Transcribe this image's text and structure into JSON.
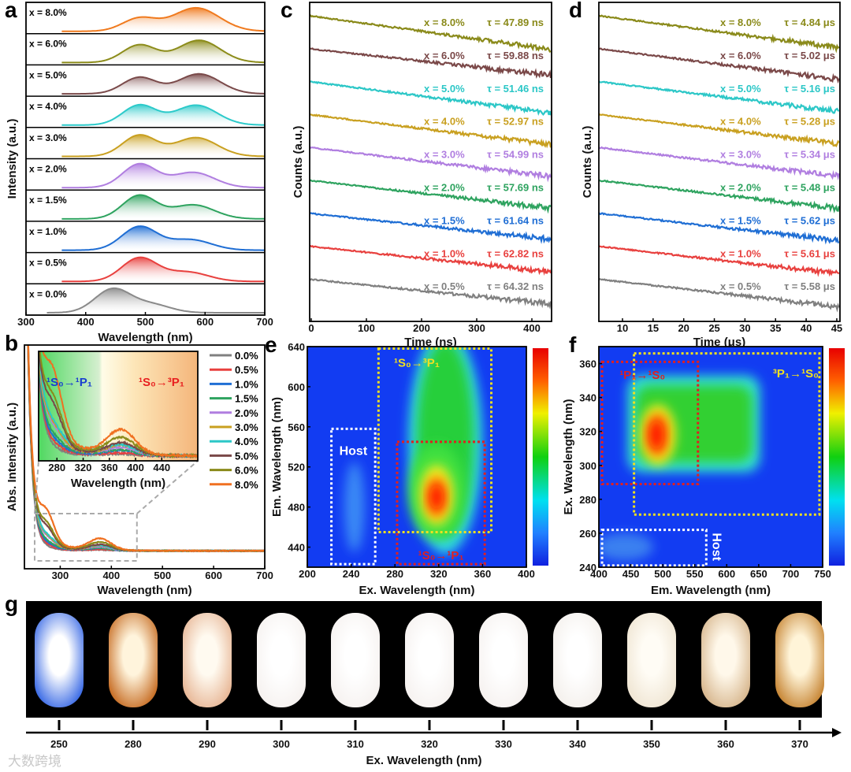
{
  "figure": {
    "panel_labels": [
      "a",
      "b",
      "c",
      "d",
      "e",
      "f",
      "g"
    ],
    "watermark": "大数跨境"
  },
  "chart_data": [
    {
      "panel": "a",
      "type": "area",
      "xlabel": "Wavelength (nm)",
      "ylabel": "Intensity (a.u.)",
      "xlim": [
        300,
        700
      ],
      "xticks": [
        300,
        400,
        500,
        600,
        700
      ],
      "series": [
        {
          "name": "x = 8.0%",
          "color": "#f07a1e",
          "peaks": [
            [
              490,
              0.55,
              40
            ],
            [
              585,
              1.0,
              55
            ]
          ]
        },
        {
          "name": "x = 6.0%",
          "color": "#8c8c1a",
          "peaks": [
            [
              490,
              0.75,
              40
            ],
            [
              590,
              0.95,
              50
            ]
          ]
        },
        {
          "name": "x = 5.0%",
          "color": "#7a4a4a",
          "peaks": [
            [
              490,
              0.7,
              40
            ],
            [
              590,
              0.85,
              50
            ]
          ]
        },
        {
          "name": "x = 4.0%",
          "color": "#2ccaca",
          "peaks": [
            [
              490,
              0.85,
              40
            ],
            [
              585,
              0.85,
              50
            ]
          ]
        },
        {
          "name": "x = 3.0%",
          "color": "#c9a020",
          "peaks": [
            [
              490,
              0.9,
              40
            ],
            [
              585,
              0.8,
              50
            ]
          ]
        },
        {
          "name": "x = 2.0%",
          "color": "#b07ee0",
          "peaks": [
            [
              490,
              1.0,
              40
            ],
            [
              580,
              0.65,
              50
            ]
          ]
        },
        {
          "name": "x = 1.5%",
          "color": "#2ea35f",
          "peaks": [
            [
              490,
              1.0,
              40
            ],
            [
              580,
              0.6,
              50
            ]
          ]
        },
        {
          "name": "x = 1.0%",
          "color": "#1f6ed4",
          "peaks": [
            [
              490,
              1.0,
              42
            ],
            [
              575,
              0.45,
              50
            ]
          ]
        },
        {
          "name": "x = 0.5%",
          "color": "#e8403e",
          "peaks": [
            [
              490,
              1.0,
              42
            ],
            [
              570,
              0.4,
              50
            ]
          ]
        },
        {
          "name": "x = 0.0%",
          "color": "#8a8a8a",
          "peaks": [
            [
              445,
              1.0,
              42
            ],
            [
              510,
              0.35,
              45
            ]
          ]
        }
      ]
    },
    {
      "panel": "b",
      "type": "line",
      "xlabel": "Wavelength (nm)",
      "ylabel": "Abs. Intensity (a.u.)",
      "xlim": [
        230,
        700
      ],
      "xticks": [
        300,
        400,
        500,
        600,
        700
      ],
      "ylim": [
        0,
        1
      ],
      "inset": {
        "xlim": [
          252,
          495
        ],
        "ylim": [
          0.07,
          0.3
        ],
        "xticks": [
          280,
          320,
          360,
          400,
          440
        ],
        "xlabel": "Wavelength (nm)",
        "band_labels": [
          {
            "text": "¹S₀→¹P₁",
            "color": "#1a3fd0"
          },
          {
            "text": "¹S₀→³P₁",
            "color": "#e82020"
          }
        ]
      },
      "series": [
        {
          "name": "0.0%",
          "color": "#808080",
          "shoulder_280": 0.005,
          "band_375": 0.003,
          "tail": 0.01
        },
        {
          "name": "0.5%",
          "color": "#e8403e",
          "shoulder_280": 0.01,
          "band_375": 0.005,
          "tail": 0.015
        },
        {
          "name": "1.0%",
          "color": "#1f6ed4",
          "shoulder_280": 0.015,
          "band_375": 0.01,
          "tail": 0.02
        },
        {
          "name": "1.5%",
          "color": "#2ea35f",
          "shoulder_280": 0.02,
          "band_375": 0.01,
          "tail": 0.025
        },
        {
          "name": "2.0%",
          "color": "#b07ee0",
          "shoulder_280": 0.035,
          "band_375": 0.015,
          "tail": 0.03
        },
        {
          "name": "3.0%",
          "color": "#c9a020",
          "shoulder_280": 0.04,
          "band_375": 0.02,
          "tail": 0.03
        },
        {
          "name": "4.0%",
          "color": "#2cc7c7",
          "shoulder_280": 0.03,
          "band_375": 0.018,
          "tail": 0.05
        },
        {
          "name": "5.0%",
          "color": "#7a4848",
          "shoulder_280": 0.08,
          "band_375": 0.025,
          "tail": 0.03
        },
        {
          "name": "6.0%",
          "color": "#8a8a1a",
          "shoulder_280": 0.09,
          "band_375": 0.035,
          "tail": 0.04
        },
        {
          "name": "8.0%",
          "color": "#f07020",
          "shoulder_280": 0.14,
          "band_375": 0.05,
          "tail": 0.05
        }
      ]
    },
    {
      "panel": "c",
      "type": "line",
      "xlabel": "Time (ns)",
      "ylabel": "Counts (a.u.)",
      "xlim": [
        0,
        440
      ],
      "xticks": [
        0,
        100,
        200,
        300,
        400
      ],
      "series": [
        {
          "name": "x = 8.0%",
          "tau_label": "τ = 47.89 ns",
          "tau": 47.89,
          "color": "#8a8a1a"
        },
        {
          "name": "x = 6.0%",
          "tau_label": "τ = 59.88 ns",
          "tau": 59.88,
          "color": "#7a4848"
        },
        {
          "name": "x = 5.0%",
          "tau_label": "τ = 51.46 ns",
          "tau": 51.46,
          "color": "#2cc7c7"
        },
        {
          "name": "x = 4.0%",
          "tau_label": "τ = 52.97 ns",
          "tau": 52.97,
          "color": "#c9a020"
        },
        {
          "name": "x = 3.0%",
          "tau_label": "τ = 54.99 ns",
          "tau": 54.99,
          "color": "#b07ee0"
        },
        {
          "name": "x = 2.0%",
          "tau_label": "τ = 57.69 ns",
          "tau": 57.69,
          "color": "#2ea35f"
        },
        {
          "name": "x = 1.5%",
          "tau_label": "τ = 61.64 ns",
          "tau": 61.64,
          "color": "#1f6ed4"
        },
        {
          "name": "x = 1.0%",
          "tau_label": "τ = 62.82 ns",
          "tau": 62.82,
          "color": "#e8403e"
        },
        {
          "name": "x = 0.5%",
          "tau_label": "τ = 64.32 ns",
          "tau": 64.32,
          "color": "#808080"
        }
      ]
    },
    {
      "panel": "d",
      "type": "line",
      "xlabel": "Time (μs)",
      "ylabel": "Counts (a.u.)",
      "xlim": [
        6,
        45
      ],
      "xticks": [
        10,
        15,
        20,
        25,
        30,
        35,
        40,
        45
      ],
      "series": [
        {
          "name": "x = 8.0%",
          "tau_label": "τ = 4.84 μs",
          "tau": 4.84,
          "color": "#8a8a1a"
        },
        {
          "name": "x = 6.0%",
          "tau_label": "τ = 5.02 μs",
          "tau": 5.02,
          "color": "#7a4848"
        },
        {
          "name": "x = 5.0%",
          "tau_label": "τ = 5.16 μs",
          "tau": 5.16,
          "color": "#2cc7c7"
        },
        {
          "name": "x = 4.0%",
          "tau_label": "τ = 5.28 μs",
          "tau": 5.28,
          "color": "#c9a020"
        },
        {
          "name": "x = 3.0%",
          "tau_label": "τ = 5.34 μs",
          "tau": 5.34,
          "color": "#b07ee0"
        },
        {
          "name": "x = 2.0%",
          "tau_label": "τ = 5.48 μs",
          "tau": 5.48,
          "color": "#2ea35f"
        },
        {
          "name": "x = 1.5%",
          "tau_label": "τ = 5.62 μs",
          "tau": 5.62,
          "color": "#1f6ed4"
        },
        {
          "name": "x = 1.0%",
          "tau_label": "τ = 5.61 μs",
          "tau": 5.61,
          "color": "#e8403e"
        },
        {
          "name": "x = 0.5%",
          "tau_label": "τ = 5.58 μs",
          "tau": 5.58,
          "color": "#808080"
        }
      ]
    },
    {
      "panel": "e",
      "type": "heatmap",
      "xlabel": "Ex. Wavelength (nm)",
      "ylabel": "Em. Wavelength (nm)",
      "xlim": [
        200,
        400
      ],
      "ylim": [
        420,
        640
      ],
      "xticks": [
        200,
        240,
        280,
        320,
        360,
        400
      ],
      "yticks": [
        440,
        480,
        520,
        560,
        600,
        640
      ],
      "peaks": [
        {
          "ex": 318,
          "em": 490,
          "intensity": 1.0
        }
      ],
      "regions": [
        {
          "label": "Host",
          "color": "#ffffff",
          "ex": [
            222,
            262
          ],
          "em": [
            423,
            558
          ]
        },
        {
          "label": "¹S₀→³P₁",
          "color": "#f0e020",
          "ex": [
            265,
            368
          ],
          "em": [
            455,
            638
          ]
        },
        {
          "label": "¹S₀→¹P₁",
          "color": "#e02020",
          "ex": [
            282,
            362
          ],
          "em": [
            423,
            545
          ]
        }
      ]
    },
    {
      "panel": "f",
      "type": "heatmap",
      "xlabel": "Em. Wavelength (nm)",
      "ylabel": "Ex. Wavelength (nm)",
      "xlim": [
        400,
        750
      ],
      "ylim": [
        240,
        370
      ],
      "xticks": [
        400,
        450,
        500,
        550,
        600,
        650,
        700,
        750
      ],
      "yticks": [
        240,
        260,
        280,
        300,
        320,
        340,
        360
      ],
      "peaks": [
        {
          "em": 490,
          "ex": 318,
          "intensity": 1.0
        }
      ],
      "regions": [
        {
          "label": "¹P₁→¹S₀",
          "color": "#e02020",
          "em": [
            405,
            555
          ],
          "ex": [
            289,
            361
          ]
        },
        {
          "label": "³P₁→¹S₀",
          "color": "#f0e020",
          "em": [
            455,
            745
          ],
          "ex": [
            271,
            366
          ]
        },
        {
          "label": "Host",
          "color": "#ffffff",
          "em": [
            405,
            568
          ],
          "ex": [
            241,
            262
          ]
        }
      ]
    },
    {
      "panel": "g",
      "type": "image-strip",
      "xlabel": "Ex. Wavelength (nm)",
      "categories": [
        "250",
        "280",
        "290",
        "300",
        "310",
        "320",
        "330",
        "340",
        "350",
        "360",
        "370"
      ],
      "glow_colors": [
        [
          "#ffffff",
          "#3f6ee6"
        ],
        [
          "#fff4dc",
          "#c87028"
        ],
        [
          "#fffaf0",
          "#e8b898"
        ],
        [
          "#ffffff",
          "#f6f2f0"
        ],
        [
          "#ffffff",
          "#f6f2f0"
        ],
        [
          "#ffffff",
          "#f6f2f0"
        ],
        [
          "#ffffff",
          "#f6f2f0"
        ],
        [
          "#ffffff",
          "#f4f0ec"
        ],
        [
          "#fffcf5",
          "#f0e6d4"
        ],
        [
          "#fff8ea",
          "#d8b890"
        ],
        [
          "#fff4d8",
          "#c88838"
        ]
      ]
    }
  ]
}
